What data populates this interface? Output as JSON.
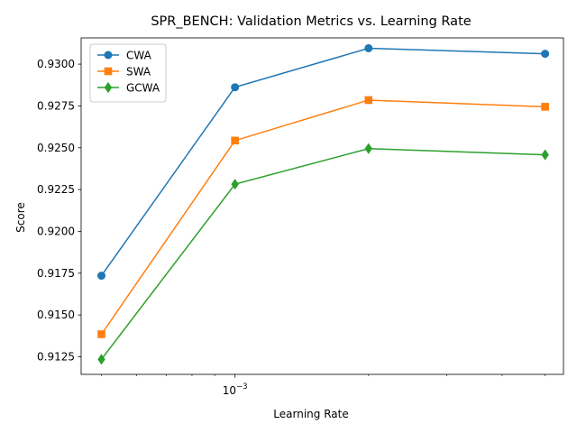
{
  "chart_data": {
    "type": "line",
    "title": "SPR_BENCH: Validation Metrics vs. Learning Rate",
    "xlabel": "Learning Rate",
    "ylabel": "Score",
    "xscale": "log",
    "x": [
      0.0005,
      0.001,
      0.002,
      0.005
    ],
    "xlim": [
      0.00045,
      0.0055
    ],
    "ylim": [
      0.91145,
      0.93157
    ],
    "y_ticks": [
      0.9125,
      0.915,
      0.9175,
      0.92,
      0.9225,
      0.925,
      0.9275,
      0.93
    ],
    "y_tick_labels": [
      "0.9125",
      "0.9150",
      "0.9175",
      "0.9200",
      "0.9225",
      "0.9250",
      "0.9275",
      "0.9300"
    ],
    "x_major_ticks": [
      0.001
    ],
    "x_major_tick_labels": [
      "10−3"
    ],
    "x_minor_ticks": [
      0.0005,
      0.0006,
      0.0007,
      0.0008,
      0.0009,
      0.002,
      0.003,
      0.004,
      0.005
    ],
    "grid": false,
    "legend_position": "upper-left",
    "series": [
      {
        "name": "CWA",
        "color": "#1f77b4",
        "marker": "circle",
        "values": [
          0.91735,
          0.92862,
          0.93095,
          0.93062
        ]
      },
      {
        "name": "SWA",
        "color": "#ff7f0e",
        "marker": "square",
        "values": [
          0.91385,
          0.92543,
          0.92785,
          0.92745
        ]
      },
      {
        "name": "GCWA",
        "color": "#2ca02c",
        "marker": "diamond",
        "values": [
          0.91235,
          0.92282,
          0.92495,
          0.92458
        ]
      }
    ]
  }
}
